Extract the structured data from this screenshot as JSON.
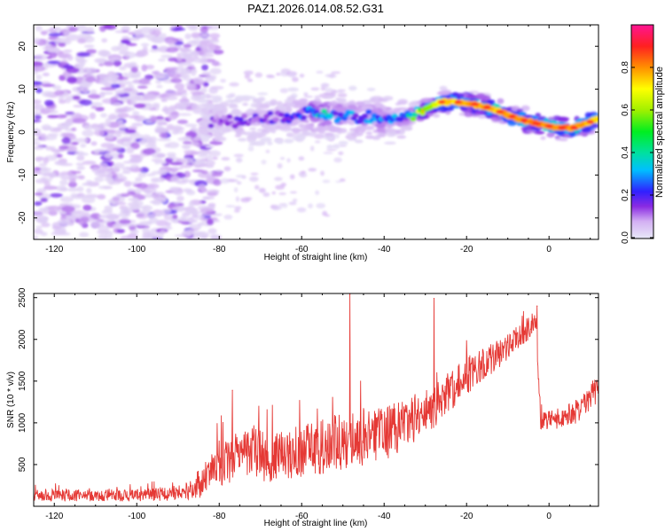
{
  "figure": {
    "title": "PAZ1.2026.014.08.52.G31"
  },
  "chart_data": [
    {
      "type": "heatmap",
      "title": "PAZ1.2026.014.08.52.G31",
      "xlabel": "Height of straight line (km)",
      "ylabel": "Frequency (Hz)",
      "xlim": [
        -125,
        12
      ],
      "ylim": [
        -25,
        25
      ],
      "xticks": [
        -120,
        -100,
        -80,
        -60,
        -40,
        -20,
        0
      ],
      "yticks": [
        -20,
        -10,
        0,
        10,
        20
      ],
      "colorbar": {
        "label": "Normalized spectral amplitude",
        "range": [
          0,
          1
        ],
        "ticks": [
          0.0,
          0.2,
          0.4,
          0.6,
          0.8
        ]
      },
      "frequency_track": {
        "x": [
          -82,
          -78,
          -74,
          -70,
          -66,
          -62,
          -58,
          -54,
          -50,
          -46,
          -42,
          -38,
          -34,
          -30,
          -26,
          -22,
          -18,
          -14,
          -10,
          -6,
          -2,
          2,
          6,
          10,
          12
        ],
        "f": [
          2.5,
          2.5,
          2.6,
          2.8,
          3.2,
          4.0,
          4.5,
          4.3,
          3.7,
          3.6,
          3.2,
          3.1,
          3.3,
          5.6,
          7.0,
          7.0,
          6.5,
          5.5,
          4.0,
          2.7,
          1.8,
          1.0,
          1.0,
          2.4,
          3.2
        ],
        "amplitude": [
          0.1,
          0.12,
          0.14,
          0.14,
          0.14,
          0.15,
          0.28,
          0.26,
          0.22,
          0.2,
          0.22,
          0.2,
          0.3,
          0.55,
          0.7,
          0.75,
          0.78,
          0.75,
          0.78,
          0.8,
          0.8,
          0.82,
          0.8,
          0.78,
          0.74
        ]
      }
    },
    {
      "type": "line",
      "xlabel": "Height of straight line (km)",
      "ylabel": "SNR (10 * v/v)",
      "xlim": [
        -125,
        12
      ],
      "ylim": [
        0,
        2550
      ],
      "xticks": [
        -120,
        -100,
        -80,
        -60,
        -40,
        -20,
        0
      ],
      "yticks": [
        500,
        1000,
        1500,
        2000,
        2500
      ],
      "series": [
        {
          "name": "SNR",
          "color": "#e53935",
          "x": [
            -125,
            -120,
            -110,
            -100,
            -90,
            -86,
            -84,
            -82,
            -80,
            -78,
            -76,
            -72,
            -68,
            -64,
            -60,
            -56,
            -52,
            -48,
            -44,
            -40,
            -36,
            -32,
            -28,
            -24,
            -20,
            -16,
            -12,
            -8,
            -4,
            -3.2,
            -2,
            2,
            6,
            8,
            10,
            12
          ],
          "mean": [
            130,
            130,
            130,
            130,
            160,
            200,
            260,
            380,
            520,
            560,
            620,
            640,
            580,
            620,
            660,
            700,
            760,
            800,
            840,
            880,
            950,
            1050,
            1180,
            1380,
            1560,
            1700,
            1820,
            2000,
            2180,
            2260,
            1000,
            1050,
            1120,
            1180,
            1320,
            1420
          ],
          "spread": [
            70,
            70,
            70,
            70,
            90,
            120,
            160,
            230,
            280,
            300,
            300,
            310,
            300,
            300,
            320,
            330,
            340,
            340,
            350,
            330,
            300,
            280,
            260,
            250,
            230,
            200,
            180,
            160,
            140,
            120,
            120,
            120,
            140,
            150,
            160,
            160
          ],
          "spikes": [
            {
              "x": -76.8,
              "y": 1390
            },
            {
              "x": -48.3,
              "y": 2540
            },
            {
              "x": -27.9,
              "y": 2490
            },
            {
              "x": -2.9,
              "y": 2400
            }
          ]
        }
      ]
    }
  ]
}
